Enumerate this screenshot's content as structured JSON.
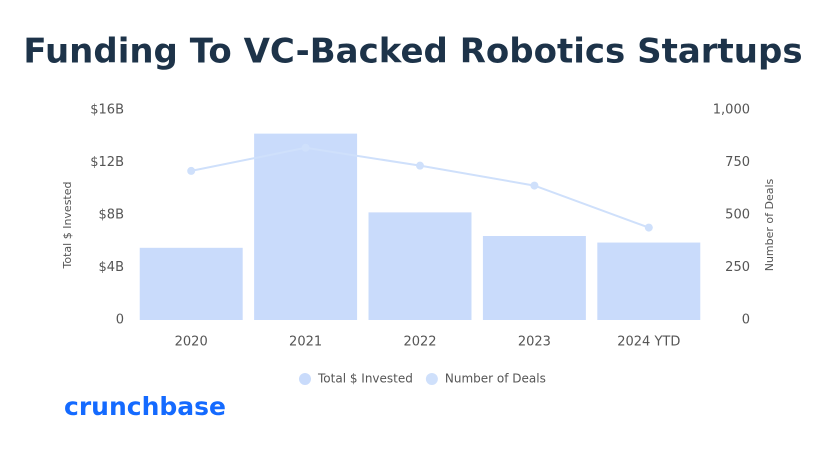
{
  "chart_data": {
    "type": "bar-line",
    "title": "Funding To VC-Backed Robotics Startups",
    "y_label": "Total $ Invested",
    "y2_label": "Number of Deals",
    "categories": [
      "2020",
      "2021",
      "2022",
      "2023",
      "2024 YTD"
    ],
    "series": [
      {
        "name": "Total $ Invested",
        "color": "#c9dbfb",
        "kind": "bar",
        "values": [
          5.5,
          14.2,
          8.2,
          6.4,
          5.9
        ]
      },
      {
        "name": "Number of Deals",
        "color": "#cfe0fb",
        "kind": "line",
        "axis": "y2",
        "values": [
          710,
          820,
          735,
          640,
          440
        ]
      }
    ],
    "ylim": [
      0,
      16
    ],
    "yticks": [
      {
        "value": 0,
        "label": "0"
      },
      {
        "value": 4,
        "label": "$4B"
      },
      {
        "value": 8,
        "label": "$8B"
      },
      {
        "value": 12,
        "label": "$12B"
      },
      {
        "value": 16,
        "label": "$16B"
      }
    ],
    "y2lim": [
      0,
      1000
    ],
    "y2ticks": [
      0,
      250,
      500,
      750,
      {
        "value": 1000,
        "label": "1,000"
      }
    ],
    "logo": "crunchbase"
  }
}
